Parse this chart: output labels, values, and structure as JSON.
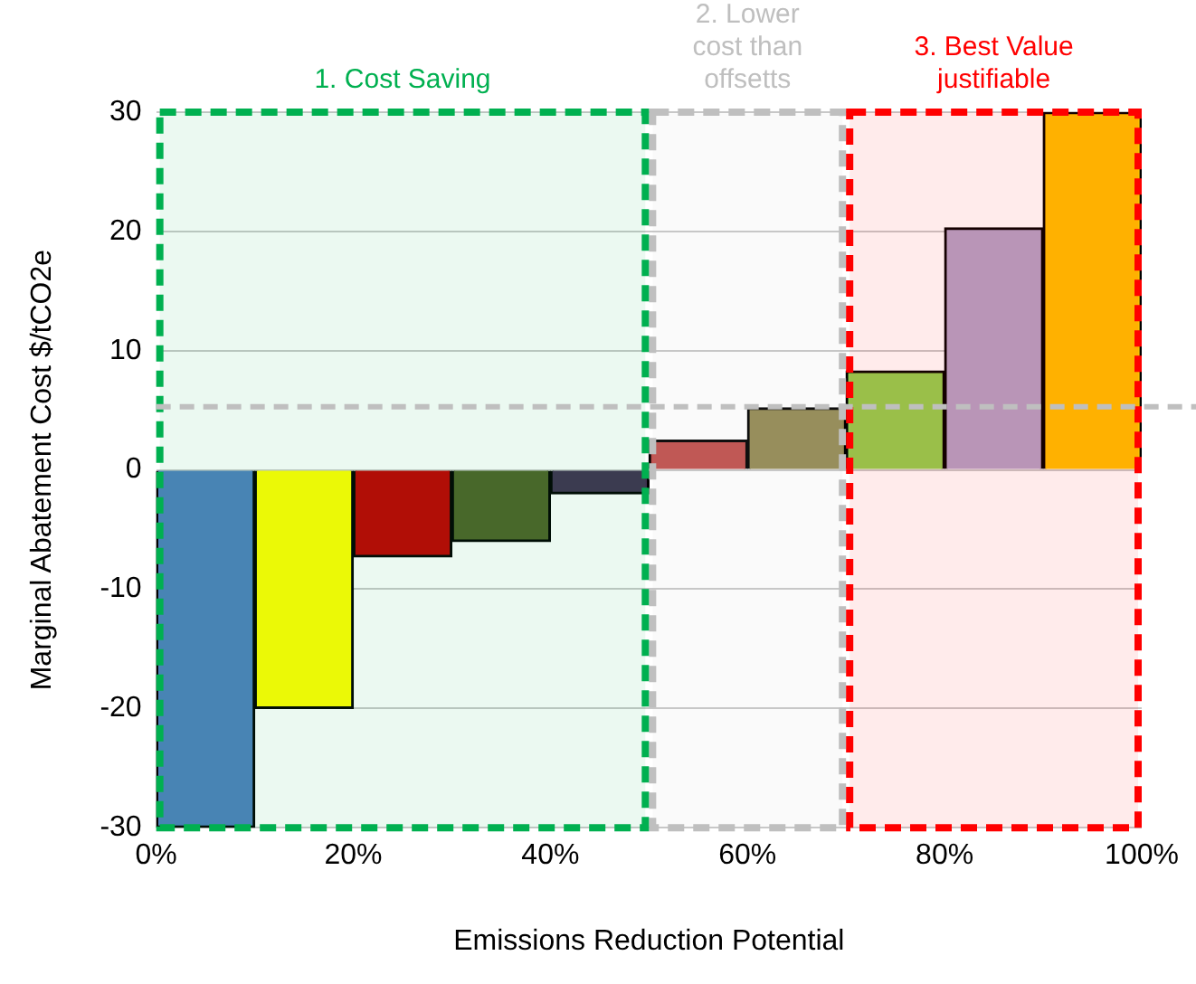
{
  "chart_data": {
    "type": "bar",
    "xlabel": "Emissions Reduction Potential",
    "ylabel": "Marginal Abatement Cost $/tCO2e",
    "x": [
      5,
      15,
      25,
      35,
      45,
      55,
      65,
      75,
      85,
      95
    ],
    "values": [
      -30,
      -20,
      -7.3,
      -6,
      -2,
      2.5,
      5.2,
      8.3,
      20.3,
      30
    ],
    "colors": [
      "#4f81bd",
      "#ffff00",
      "#c00000",
      "#4f6228",
      "#403151",
      "#c0504d",
      "#948a54",
      "#92d050",
      "#b3a2c7",
      "#ffc000"
    ],
    "xlim": [
      0,
      100
    ],
    "xticks": [
      {
        "value": 0,
        "label": "0%"
      },
      {
        "value": 20,
        "label": "20%"
      },
      {
        "value": 40,
        "label": "40%"
      },
      {
        "value": 60,
        "label": "60%"
      },
      {
        "value": 80,
        "label": "80%"
      },
      {
        "value": 100,
        "label": "100%"
      }
    ],
    "ylim": [
      -30,
      30
    ],
    "yticks": [
      -30,
      -20,
      -10,
      0,
      10,
      20,
      30
    ],
    "grid": "y",
    "ref_lines": [
      {
        "axis": "y",
        "value": 5.3,
        "color": "#bfbfbf",
        "line_style": "dashed"
      }
    ],
    "bands": [
      {
        "axis": "x",
        "from": 50,
        "to": 70,
        "label": "2. Lower cost than offsetts",
        "color": "#bfbfbf"
      },
      {
        "axis": "x",
        "from": 0,
        "to": 50,
        "label": "1. Cost Saving",
        "color": "#00b050"
      },
      {
        "axis": "x",
        "from": 70,
        "to": 100,
        "label": "3. Best Value justifiable",
        "color": "#ff0000"
      }
    ]
  }
}
